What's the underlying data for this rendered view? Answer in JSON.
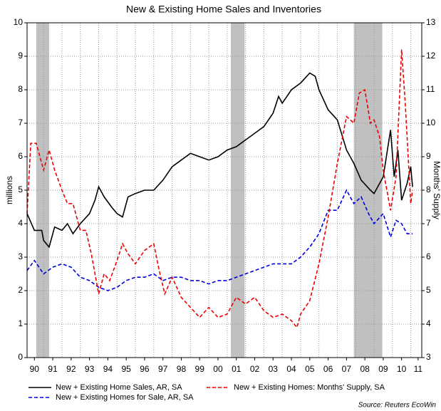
{
  "chart_data": {
    "type": "line",
    "title": "New & Existing Home Sales and Inventories",
    "ylabel": "millions",
    "y2label": "Months' Supply",
    "source": "Source: Reuters EcoWin",
    "xlim": [
      1990.1,
      2011.6
    ],
    "xticks": [
      {
        "value": 1990.5,
        "label": "90"
      },
      {
        "value": 1991.5,
        "label": "91"
      },
      {
        "value": 1992.5,
        "label": "92"
      },
      {
        "value": 1993.5,
        "label": "93"
      },
      {
        "value": 1994.5,
        "label": "94"
      },
      {
        "value": 1995.5,
        "label": "95"
      },
      {
        "value": 1996.5,
        "label": "96"
      },
      {
        "value": 1997.5,
        "label": "97"
      },
      {
        "value": 1998.5,
        "label": "98"
      },
      {
        "value": 1999.5,
        "label": "99"
      },
      {
        "value": 2000.5,
        "label": "00"
      },
      {
        "value": 2001.5,
        "label": "01"
      },
      {
        "value": 2002.5,
        "label": "02"
      },
      {
        "value": 2003.5,
        "label": "03"
      },
      {
        "value": 2004.5,
        "label": "04"
      },
      {
        "value": 2005.5,
        "label": "05"
      },
      {
        "value": 2006.5,
        "label": "06"
      },
      {
        "value": 2007.5,
        "label": "07"
      },
      {
        "value": 2008.5,
        "label": "08"
      },
      {
        "value": 2009.5,
        "label": "09"
      },
      {
        "value": 2010.5,
        "label": "10"
      },
      {
        "value": 2011.4,
        "label": "11"
      }
    ],
    "xgrid": [
      1991,
      1992,
      1993,
      1994,
      1995,
      1996,
      1997,
      1998,
      1999,
      2000,
      2001,
      2002,
      2003,
      2004,
      2005,
      2006,
      2007,
      2008,
      2009,
      2010,
      2011
    ],
    "ylim": [
      0,
      10
    ],
    "yticks": [
      0,
      1,
      2,
      3,
      4,
      5,
      6,
      7,
      8,
      9,
      10
    ],
    "y2lim": [
      3,
      13
    ],
    "y2ticks": [
      3,
      4,
      5,
      6,
      7,
      8,
      9,
      10,
      11,
      12,
      13
    ],
    "grid": true,
    "shaded_periods": [
      [
        1990.6,
        1991.3
      ],
      [
        2001.2,
        2001.95
      ],
      [
        2007.9,
        2009.45
      ]
    ],
    "shade_color": "#c0c0c0",
    "series": [
      {
        "name": "New + Existing Home Sales, AR, SA",
        "color": "#000000",
        "dash": false,
        "x": [
          1990.1,
          1990.5,
          1990.9,
          1991.0,
          1991.3,
          1991.6,
          1992.0,
          1992.3,
          1992.6,
          1993.0,
          1993.5,
          1993.8,
          1994.0,
          1994.3,
          1994.7,
          1995.0,
          1995.3,
          1995.6,
          1996.0,
          1996.5,
          1997.0,
          1997.5,
          1998.0,
          1998.5,
          1999.0,
          1999.5,
          2000.0,
          2000.5,
          2001.0,
          2001.5,
          2002.0,
          2002.5,
          2003.0,
          2003.5,
          2003.8,
          2004.0,
          2004.5,
          2005.0,
          2005.5,
          2005.8,
          2006.0,
          2006.5,
          2007.0,
          2007.5,
          2007.9,
          2008.3,
          2008.8,
          2009.0,
          2009.5,
          2009.9,
          2010.1,
          2010.3,
          2010.5,
          2010.8,
          2011.0,
          2011.1
        ],
        "values": [
          4.3,
          3.8,
          3.8,
          3.5,
          3.3,
          3.9,
          3.8,
          4.0,
          3.7,
          4.0,
          4.3,
          4.7,
          5.1,
          4.8,
          4.5,
          4.3,
          4.2,
          4.8,
          4.9,
          5.0,
          5.0,
          5.3,
          5.7,
          5.9,
          6.1,
          6.0,
          5.9,
          6.0,
          6.2,
          6.3,
          6.5,
          6.7,
          6.9,
          7.3,
          7.8,
          7.6,
          8.0,
          8.2,
          8.5,
          8.4,
          8.0,
          7.4,
          7.1,
          6.2,
          5.8,
          5.3,
          5.0,
          4.9,
          5.4,
          6.8,
          5.4,
          6.2,
          4.7,
          5.2,
          5.7,
          5.1
        ]
      },
      {
        "name": "New + Existing Homes for Sale, AR, SA",
        "color": "#0000dd",
        "dash": true,
        "x": [
          1990.1,
          1990.5,
          1991.0,
          1991.5,
          1992.0,
          1992.5,
          1993.0,
          1993.5,
          1994.0,
          1994.5,
          1995.0,
          1995.5,
          1996.0,
          1996.5,
          1997.0,
          1997.5,
          1998.0,
          1998.5,
          1999.0,
          1999.5,
          2000.0,
          2000.5,
          2001.0,
          2001.5,
          2002.0,
          2002.5,
          2003.0,
          2003.5,
          2004.0,
          2004.5,
          2005.0,
          2005.5,
          2006.0,
          2006.5,
          2007.0,
          2007.5,
          2007.9,
          2008.3,
          2008.7,
          2009.0,
          2009.5,
          2009.9,
          2010.2,
          2010.5,
          2010.8,
          2011.1
        ],
        "values": [
          2.6,
          2.9,
          2.5,
          2.7,
          2.8,
          2.7,
          2.4,
          2.3,
          2.1,
          2.0,
          2.1,
          2.3,
          2.4,
          2.4,
          2.5,
          2.3,
          2.4,
          2.4,
          2.3,
          2.3,
          2.2,
          2.3,
          2.3,
          2.4,
          2.5,
          2.6,
          2.7,
          2.8,
          2.8,
          2.8,
          3.0,
          3.3,
          3.7,
          4.4,
          4.4,
          5.0,
          4.6,
          4.8,
          4.3,
          4.0,
          4.3,
          3.6,
          4.1,
          4.0,
          3.7,
          3.7
        ]
      },
      {
        "name": "New + Existing Homes: Months' Supply, SA",
        "color": "#ee0000",
        "dash": true,
        "axis": "y2",
        "x": [
          1990.1,
          1990.3,
          1990.6,
          1990.8,
          1991.0,
          1991.3,
          1991.6,
          1992.0,
          1992.3,
          1992.6,
          1993.0,
          1993.3,
          1993.6,
          1994.0,
          1994.3,
          1994.6,
          1995.0,
          1995.3,
          1995.6,
          1996.0,
          1996.5,
          1997.0,
          1997.3,
          1997.6,
          1998.0,
          1998.5,
          1999.0,
          1999.5,
          2000.0,
          2000.5,
          2001.0,
          2001.5,
          2002.0,
          2002.5,
          2003.0,
          2003.5,
          2004.0,
          2004.5,
          2004.8,
          2005.0,
          2005.5,
          2006.0,
          2006.5,
          2007.0,
          2007.5,
          2007.9,
          2008.2,
          2008.5,
          2008.8,
          2009.0,
          2009.3,
          2009.5,
          2009.9,
          2010.2,
          2010.5,
          2010.7,
          2011.0,
          2011.1
        ],
        "values": [
          7.3,
          9.4,
          9.4,
          9.0,
          8.6,
          9.2,
          8.6,
          8.0,
          7.6,
          7.6,
          6.8,
          6.8,
          6.1,
          4.9,
          5.5,
          5.3,
          5.9,
          6.4,
          6.1,
          5.8,
          6.2,
          6.4,
          5.6,
          4.9,
          5.4,
          4.8,
          4.5,
          4.2,
          4.5,
          4.2,
          4.3,
          4.8,
          4.6,
          4.8,
          4.4,
          4.2,
          4.3,
          4.1,
          3.9,
          4.3,
          4.7,
          5.8,
          7.2,
          8.8,
          10.2,
          10.0,
          10.9,
          11.0,
          10.0,
          10.1,
          9.6,
          8.6,
          7.4,
          8.4,
          12.2,
          10.6,
          7.6,
          8.0
        ]
      }
    ]
  }
}
